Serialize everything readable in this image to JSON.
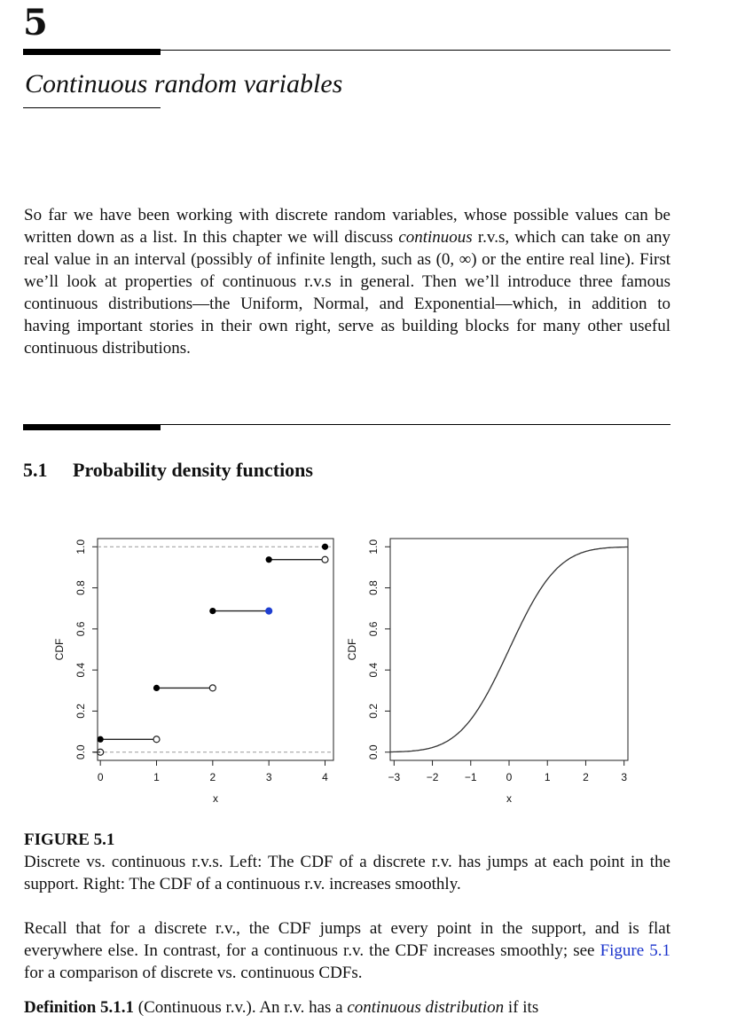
{
  "chapter": {
    "number": "5",
    "title": "Continuous random variables"
  },
  "intro": {
    "p1": "So far we have been working with discrete random variables, whose possible values can be written down as a list. In this chapter we will discuss ",
    "p1_italic": "continuous",
    "p2": " r.v.s, which can take on any real value in an interval (possibly of infinite length, such as (0, ∞) or the entire real line). First we’ll look at properties of continuous r.v.s in general. Then we’ll introduce three famous continuous distributions—the Uniform, Normal, and Exponential—which, in addition to having important stories in their own right, serve as building blocks for many other useful continuous distributions."
  },
  "section": {
    "number": "5.1",
    "title": "Probability density functions"
  },
  "chart_data": [
    {
      "type": "line",
      "step": true,
      "xlabel": "x",
      "ylabel": "CDF",
      "xlim": [
        -0.05,
        4.15
      ],
      "ylim": [
        -0.04,
        1.04
      ],
      "xticks": [
        "0",
        "1",
        "2",
        "3",
        "4"
      ],
      "yticks": [
        "0.0",
        "0.2",
        "0.4",
        "0.6",
        "0.8",
        "1.0"
      ],
      "reference_lines_y": [
        0,
        1
      ],
      "points": [
        {
          "x": 0,
          "y": 0.0625
        },
        {
          "x": 1,
          "y": 0.3125
        },
        {
          "x": 2,
          "y": 0.6875
        },
        {
          "x": 3,
          "y": 0.9375
        },
        {
          "x": 4,
          "y": 1.0
        }
      ]
    },
    {
      "type": "line",
      "xlabel": "x",
      "ylabel": "CDF",
      "xlim": [
        -3.1,
        3.1
      ],
      "ylim": [
        -0.04,
        1.04
      ],
      "xticks": [
        "-3",
        "-2",
        "-1",
        "0",
        "1",
        "2",
        "3"
      ],
      "yticks": [
        "0.0",
        "0.2",
        "0.4",
        "0.6",
        "0.8",
        "1.0"
      ],
      "curve": "standard normal CDF",
      "x": [
        -3,
        -2.5,
        -2,
        -1.5,
        -1,
        -0.5,
        0,
        0.5,
        1,
        1.5,
        2,
        2.5,
        3
      ],
      "y": [
        0.001,
        0.006,
        0.023,
        0.067,
        0.159,
        0.309,
        0.5,
        0.691,
        0.841,
        0.933,
        0.977,
        0.994,
        0.999
      ]
    }
  ],
  "figure": {
    "label": "FIGURE 5.1",
    "caption": "Discrete vs. continuous r.v.s. Left: The CDF of a discrete r.v. has jumps at each point in the support. Right: The CDF of a continuous r.v. increases smoothly."
  },
  "para2": {
    "before": "Recall that for a discrete r.v., the CDF jumps at every point in the support, and is flat everywhere else. In contrast, for a continuous r.v. the CDF increases smoothly; see ",
    "link": "Figure 5.1",
    "after": " for a comparison of discrete vs. continuous CDFs."
  },
  "definition": {
    "label": "Definition 5.1.1",
    "name": " (Continuous r.v.). ",
    "text1": "An r.v. has a ",
    "italic": "continuous distribution",
    "text2": " if its"
  }
}
